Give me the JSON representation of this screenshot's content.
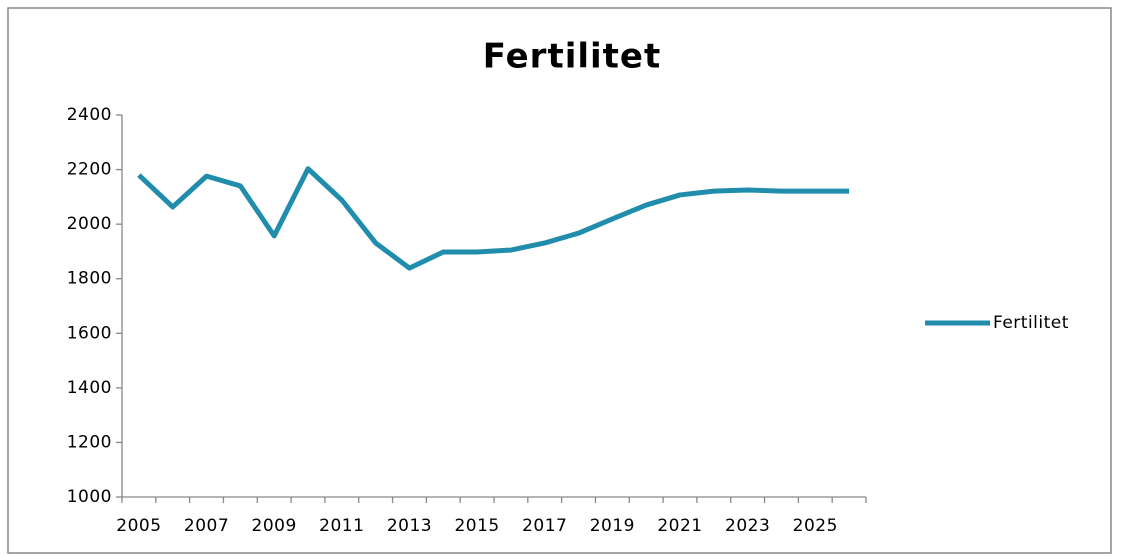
{
  "chart_data": {
    "type": "line",
    "title": "Fertilitet",
    "categories": [
      "2005",
      null,
      "2007",
      null,
      "2009",
      null,
      "2011",
      null,
      "2013",
      null,
      "2015",
      null,
      "2017",
      null,
      "2019",
      null,
      "2021",
      null,
      "2023",
      null,
      "2025",
      null
    ],
    "series": [
      {
        "name": "Fertilitet",
        "color": "#1f8dab",
        "values": [
          2180,
          2063,
          2176,
          2140,
          1957,
          2203,
          2088,
          1931,
          1839,
          1898,
          1898,
          1905,
          1931,
          1967,
          2019,
          2070,
          2107,
          2121,
          2125,
          2121,
          2121,
          2121
        ]
      }
    ],
    "ylim": [
      1000,
      2400
    ],
    "yticks": [
      1000,
      1200,
      1400,
      1600,
      1800,
      2000,
      2200,
      2400
    ],
    "legend": "right"
  }
}
